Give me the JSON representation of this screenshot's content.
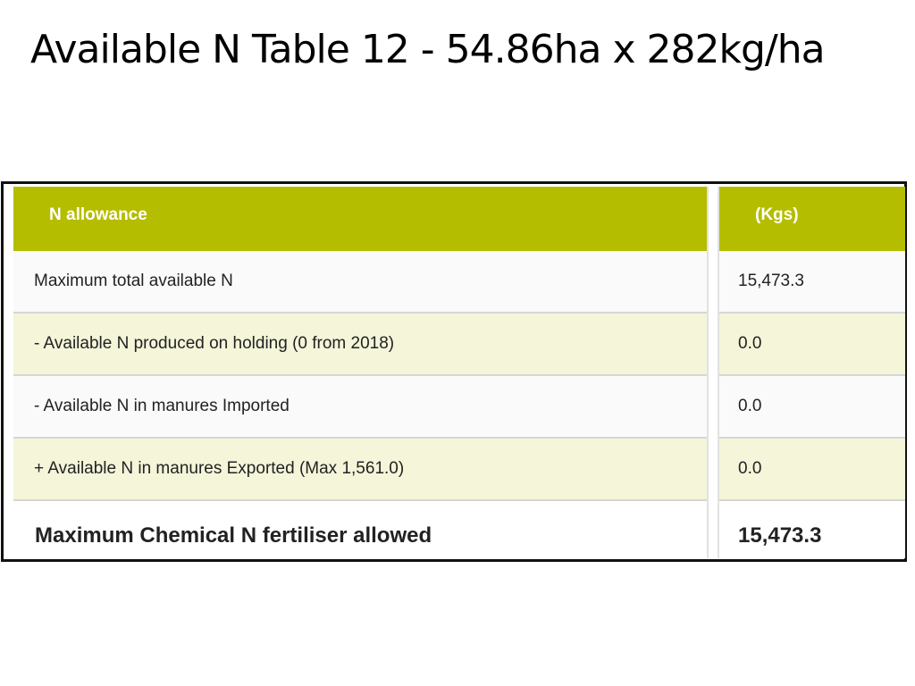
{
  "slide": {
    "title": "Available N Table 12 - 54.86ha x 282kg/ha"
  },
  "table": {
    "header": {
      "label": "N allowance",
      "value": "(Kgs)"
    },
    "rows": [
      {
        "label": "Maximum total available N",
        "value": "15,473.3"
      },
      {
        "label": "- Available N produced on holding (0 from 2018)",
        "value": "0.0"
      },
      {
        "label": "- Available N in manures Imported",
        "value": "0.0"
      },
      {
        "label": "+ Available N in manures Exported (Max 1,561.0)",
        "value": "0.0"
      }
    ],
    "total": {
      "label": "Maximum Chemical N fertiliser allowed",
      "value": "15,473.3"
    },
    "colors": {
      "header_bg": "#b5bd00",
      "alt_row_bg": "#f4f5d9"
    }
  }
}
